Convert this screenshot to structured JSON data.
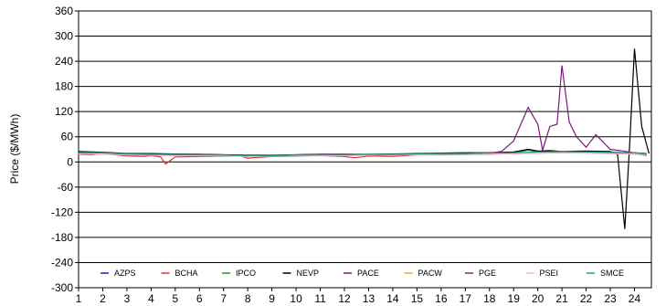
{
  "chart_data": {
    "type": "line",
    "title": "",
    "xlabel": "",
    "ylabel": "Price ($/MWh)",
    "xlim": [
      1,
      24.7
    ],
    "ylim": [
      -300,
      360
    ],
    "x_ticks": [
      "1",
      "2",
      "3",
      "4",
      "5",
      "6",
      "7",
      "8",
      "9",
      "10",
      "11",
      "12",
      "13",
      "14",
      "15",
      "16",
      "17",
      "18",
      "19",
      "20",
      "21",
      "22",
      "23",
      "24"
    ],
    "y_ticks": [
      "360",
      "300",
      "240",
      "180",
      "120",
      "60",
      "0",
      "-60",
      "-120",
      "-180",
      "-240",
      "-300"
    ],
    "grid": "horizontal",
    "legend_placement": "bottom-inside",
    "series": [
      {
        "name": "AZPS",
        "color": "#1f1fbf",
        "x": [
          1,
          1.5,
          2,
          3,
          4,
          5,
          6,
          7,
          8,
          9,
          10,
          11,
          12,
          13,
          14,
          15,
          16,
          17,
          18,
          19,
          19.6,
          20,
          20.5,
          21,
          22,
          23,
          23.5,
          24,
          24.5
        ],
        "y": [
          25,
          20,
          22,
          18,
          17,
          18,
          18,
          17,
          15,
          15,
          17,
          18,
          18,
          17,
          18,
          19,
          20,
          20,
          21,
          22,
          30,
          25,
          26,
          25,
          24,
          24,
          22,
          22,
          20
        ]
      },
      {
        "name": "BCHA",
        "color": "#e03030",
        "x": [
          1,
          1.5,
          2,
          3,
          3.7,
          4,
          4.4,
          4.6,
          5,
          6,
          7,
          7.7,
          8,
          9,
          10,
          11,
          12,
          12.4,
          13,
          14,
          15,
          16,
          17,
          18,
          19,
          20,
          21,
          22,
          23,
          24,
          24.5
        ],
        "y": [
          18,
          17,
          20,
          14,
          13,
          15,
          12,
          -5,
          12,
          13,
          14,
          14,
          9,
          13,
          14,
          15,
          13,
          10,
          14,
          13,
          17,
          17,
          18,
          19,
          20,
          21,
          22,
          23,
          22,
          20,
          15
        ]
      },
      {
        "name": "IPCO",
        "color": "#1a9a1a",
        "x": [
          1,
          2,
          3,
          4,
          5,
          6,
          7,
          8,
          9,
          10,
          11,
          12,
          13,
          14,
          15,
          16,
          17,
          18,
          19,
          19.6,
          20,
          21,
          22,
          23,
          23.5,
          24,
          24.5
        ],
        "y": [
          24,
          23,
          19,
          19,
          18,
          17,
          16,
          15,
          15,
          16,
          17,
          18,
          18,
          18,
          19,
          20,
          21,
          21,
          22,
          28,
          24,
          25,
          24,
          23,
          22,
          22,
          20
        ]
      },
      {
        "name": "NEVP",
        "color": "#000000",
        "x": [
          1,
          2,
          3,
          4,
          5,
          6,
          7,
          8,
          9,
          10,
          11,
          12,
          13,
          14,
          15,
          16,
          17,
          18,
          19,
          19.6,
          20,
          20.5,
          21,
          22,
          23,
          23.3,
          23.6,
          23.8,
          24,
          24.3,
          24.6
        ],
        "y": [
          25,
          23,
          20,
          20,
          19,
          18,
          17,
          16,
          16,
          17,
          18,
          18,
          18,
          19,
          20,
          21,
          22,
          22,
          24,
          30,
          26,
          27,
          25,
          26,
          25,
          18,
          -160,
          40,
          270,
          85,
          20
        ]
      },
      {
        "name": "PACE",
        "color": "#7a1a7a",
        "x": [
          1,
          2,
          3,
          4,
          5,
          6,
          7,
          8,
          9,
          10,
          11,
          12,
          13,
          14,
          15,
          16,
          17,
          18,
          18.5,
          19,
          19.3,
          19.6,
          20,
          20.2,
          20.5,
          20.8,
          21,
          21.3,
          21.6,
          22,
          22.4,
          23,
          23.5,
          24,
          24.5
        ],
        "y": [
          22,
          21,
          19,
          18,
          17,
          17,
          16,
          15,
          15,
          16,
          17,
          17,
          17,
          18,
          19,
          20,
          20,
          21,
          25,
          50,
          90,
          130,
          90,
          28,
          85,
          90,
          230,
          95,
          60,
          35,
          65,
          30,
          26,
          22,
          17
        ]
      },
      {
        "name": "PACW",
        "color": "#f0a030",
        "x": [
          1,
          2,
          3,
          4,
          5,
          6,
          7,
          8,
          9,
          10,
          11,
          12,
          13,
          14,
          15,
          16,
          17,
          18,
          19,
          20,
          21,
          22,
          23,
          24,
          24.5
        ],
        "y": [
          21,
          20,
          18,
          17,
          16,
          16,
          16,
          14,
          15,
          16,
          16,
          16,
          16,
          17,
          18,
          19,
          19,
          20,
          21,
          22,
          23,
          22,
          21,
          20,
          17
        ]
      },
      {
        "name": "PGE",
        "color": "#8a2a2a",
        "x": [
          1,
          2,
          3,
          4,
          5,
          6,
          7,
          8,
          9,
          10,
          11,
          12,
          13,
          14,
          15,
          16,
          17,
          18,
          19,
          20,
          21,
          22,
          23,
          24,
          24.5
        ],
        "y": [
          20,
          19,
          17,
          16,
          16,
          15,
          15,
          14,
          14,
          15,
          16,
          16,
          16,
          17,
          18,
          18,
          19,
          19,
          21,
          22,
          22,
          22,
          21,
          19,
          16
        ]
      },
      {
        "name": "PSEI",
        "color": "#f4b8c8",
        "x": [
          1,
          2,
          3,
          4,
          5,
          6,
          7,
          8,
          9,
          10,
          11,
          12,
          13,
          14,
          15,
          16,
          17,
          18,
          19,
          20,
          21,
          22,
          23,
          24,
          24.5
        ],
        "y": [
          19,
          19,
          17,
          16,
          15,
          15,
          15,
          13,
          14,
          15,
          15,
          15,
          16,
          17,
          17,
          18,
          19,
          19,
          20,
          21,
          22,
          21,
          20,
          19,
          16
        ]
      },
      {
        "name": "SMCE",
        "color": "#2a9a8a",
        "x": [
          1,
          2,
          3,
          4,
          5,
          6,
          7,
          8,
          9,
          10,
          11,
          12,
          13,
          14,
          15,
          16,
          17,
          18,
          19,
          20,
          21,
          22,
          23,
          24,
          24.5
        ],
        "y": [
          23,
          22,
          19,
          18,
          18,
          17,
          16,
          15,
          15,
          16,
          17,
          17,
          18,
          18,
          19,
          20,
          20,
          21,
          22,
          24,
          25,
          24,
          23,
          22,
          18
        ]
      }
    ]
  }
}
